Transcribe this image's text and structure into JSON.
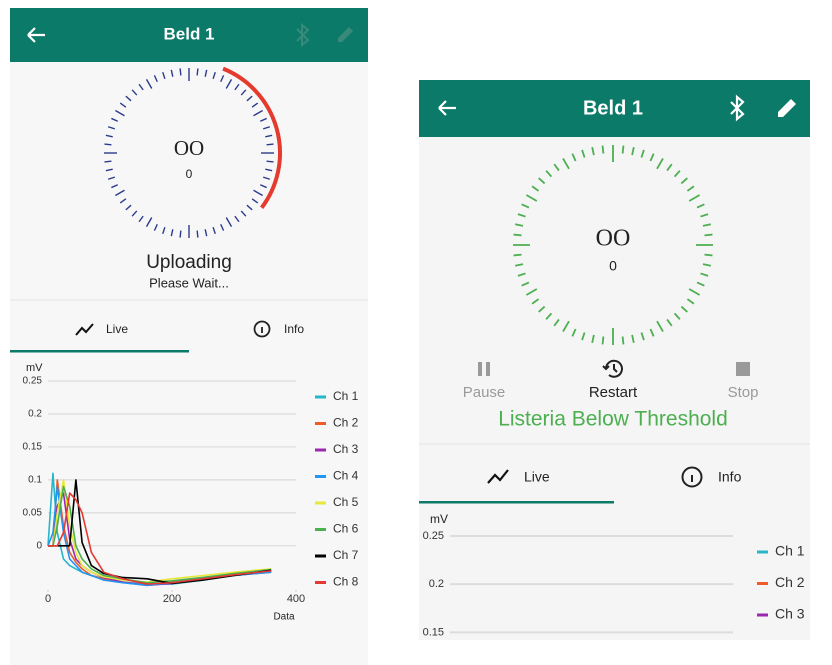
{
  "screens": [
    {
      "header": {
        "title": "Beld 1"
      },
      "dial": {
        "reading": "OO",
        "value": "0"
      },
      "status": {
        "title": "Uploading",
        "subtitle": "Please Wait..."
      },
      "tabs": [
        "Live",
        "Info"
      ]
    },
    {
      "header": {
        "title": "Beld 1"
      },
      "dial": {
        "reading": "OO",
        "value": "0"
      },
      "controls": [
        "Pause",
        "Restart",
        "Stop"
      ],
      "status": {
        "title": "Listeria Below Threshold"
      },
      "tabs": [
        "Live",
        "Info"
      ]
    }
  ],
  "chart_data": [
    {
      "type": "line",
      "y_label": "mV",
      "x_label": "Data",
      "xlim": [
        0,
        400
      ],
      "xticks": [
        0,
        200,
        400
      ],
      "ylim": [
        -0.067,
        0.25
      ],
      "yticks": [
        0,
        0.05,
        0.1,
        0.15,
        0.2,
        0.25
      ],
      "grid": true,
      "x": [
        0,
        8,
        15,
        25,
        35,
        45,
        55,
        70,
        90,
        120,
        160,
        200,
        250,
        300,
        360
      ],
      "series": [
        {
          "name": "Ch 1",
          "color": "#26b6c8",
          "values": [
            0,
            0.11,
            0.02,
            -0.02,
            -0.03,
            -0.035,
            -0.04,
            -0.045,
            -0.05,
            -0.055,
            -0.058,
            -0.058,
            -0.052,
            -0.045,
            -0.04
          ]
        },
        {
          "name": "Ch 2",
          "color": "#f05a28",
          "values": [
            0,
            0,
            0.1,
            0.03,
            -0.01,
            -0.025,
            -0.035,
            -0.045,
            -0.05,
            -0.055,
            -0.06,
            -0.055,
            -0.05,
            -0.045,
            -0.04
          ]
        },
        {
          "name": "Ch 3",
          "color": "#9c27b0",
          "values": [
            0,
            0,
            0.06,
            0.08,
            0.01,
            -0.02,
            -0.03,
            -0.04,
            -0.048,
            -0.055,
            -0.06,
            -0.057,
            -0.05,
            -0.044,
            -0.038
          ]
        },
        {
          "name": "Ch 4",
          "color": "#2196f3",
          "values": [
            0,
            0.02,
            0.09,
            0.02,
            -0.02,
            -0.03,
            -0.04,
            -0.045,
            -0.052,
            -0.056,
            -0.06,
            -0.056,
            -0.05,
            -0.045,
            -0.04
          ]
        },
        {
          "name": "Ch 5",
          "color": "#e8e83a",
          "values": [
            0,
            0,
            0.05,
            0.1,
            0.03,
            -0.01,
            -0.03,
            -0.04,
            -0.047,
            -0.052,
            -0.055,
            -0.05,
            -0.045,
            -0.04,
            -0.035
          ]
        },
        {
          "name": "Ch 6",
          "color": "#4caf50",
          "values": [
            0,
            0,
            0.03,
            0.09,
            0.06,
            0,
            -0.02,
            -0.035,
            -0.045,
            -0.05,
            -0.056,
            -0.053,
            -0.048,
            -0.042,
            -0.036
          ]
        },
        {
          "name": "Ch 7",
          "color": "#000000",
          "values": [
            0,
            0,
            0,
            0,
            0,
            0.1,
            0.005,
            -0.03,
            -0.042,
            -0.048,
            -0.05,
            -0.057,
            -0.052,
            -0.045,
            -0.037
          ]
        },
        {
          "name": "Ch 8",
          "color": "#e53935",
          "values": [
            0,
            0,
            0,
            0.02,
            0.08,
            0.07,
            0.05,
            -0.01,
            -0.04,
            -0.05,
            -0.058,
            -0.056,
            -0.05,
            -0.044,
            -0.038
          ]
        }
      ]
    },
    {
      "type": "line",
      "y_label": "mV",
      "ylim": [
        0.14,
        0.25
      ],
      "yticks": [
        0.15,
        0.2,
        0.25
      ],
      "grid": true,
      "x": [],
      "series": [
        {
          "name": "Ch 1",
          "color": "#26b6c8",
          "values": []
        },
        {
          "name": "Ch 2",
          "color": "#f05a28",
          "values": []
        },
        {
          "name": "Ch 3",
          "color": "#9c27b0",
          "values": []
        }
      ]
    }
  ]
}
